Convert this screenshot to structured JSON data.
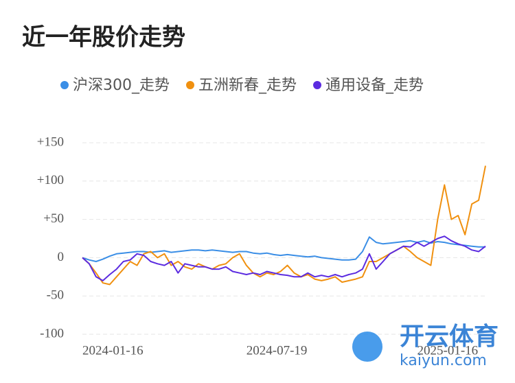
{
  "chart_data": {
    "type": "line",
    "title": "近一年股价走势",
    "categories": [
      "2024-01-16",
      null,
      null,
      null,
      null,
      null,
      null,
      null,
      null,
      null,
      null,
      null,
      null,
      null,
      null,
      null,
      null,
      null,
      null,
      null,
      null,
      null,
      null,
      null,
      "2024-07-19",
      null,
      null,
      null,
      null,
      null,
      null,
      null,
      null,
      null,
      null,
      null,
      null,
      null,
      null,
      null,
      null,
      null,
      null,
      null,
      null,
      null,
      null,
      null,
      null,
      "2025-01-16",
      null,
      null,
      null,
      null,
      null,
      null,
      null,
      null,
      null,
      null
    ],
    "series": [
      {
        "name": "沪深300_走势",
        "color": "#3a8ee6",
        "values": [
          0,
          -3,
          -5,
          -2,
          2,
          5,
          6,
          7,
          8,
          8,
          7,
          8,
          9,
          7,
          8,
          9,
          10,
          10,
          9,
          10,
          9,
          8,
          7,
          8,
          8,
          6,
          5,
          6,
          4,
          3,
          4,
          3,
          2,
          1,
          2,
          0,
          -1,
          -2,
          -3,
          -3,
          -2,
          8,
          27,
          20,
          18,
          19,
          20,
          21,
          22,
          20,
          22,
          19,
          21,
          20,
          18,
          17,
          16,
          15,
          14,
          14
        ]
      },
      {
        "name": "五洲新春_走势",
        "color": "#f0900f",
        "values": [
          0,
          -8,
          -20,
          -33,
          -35,
          -25,
          -15,
          -5,
          -10,
          5,
          8,
          0,
          5,
          -10,
          -5,
          -12,
          -15,
          -8,
          -12,
          -15,
          -10,
          -8,
          0,
          5,
          -10,
          -20,
          -25,
          -20,
          -22,
          -18,
          -10,
          -20,
          -25,
          -22,
          -28,
          -30,
          -28,
          -25,
          -32,
          -30,
          -28,
          -25,
          -5,
          -5,
          0,
          5,
          10,
          15,
          8,
          0,
          -5,
          -10,
          50,
          95,
          50,
          55,
          30,
          70,
          75,
          120
        ]
      },
      {
        "name": "通用设备_走势",
        "color": "#5b2be0",
        "values": [
          0,
          -8,
          -25,
          -30,
          -22,
          -15,
          -5,
          -3,
          5,
          3,
          -5,
          -8,
          -10,
          -5,
          -20,
          -8,
          -10,
          -12,
          -12,
          -15,
          -15,
          -12,
          -18,
          -20,
          -22,
          -20,
          -22,
          -18,
          -20,
          -22,
          -23,
          -25,
          -25,
          -20,
          -25,
          -23,
          -25,
          -22,
          -25,
          -22,
          -20,
          -15,
          5,
          -15,
          -5,
          5,
          10,
          15,
          14,
          20,
          15,
          20,
          25,
          28,
          22,
          18,
          15,
          10,
          8,
          15
        ]
      }
    ],
    "ylim": [
      -100,
      150
    ],
    "yticks": [
      {
        "value": -100,
        "label": "-100"
      },
      {
        "value": -50,
        "label": "-50"
      },
      0,
      {
        "value": 50,
        "label": "+50"
      },
      {
        "value": 100,
        "label": "+100"
      },
      {
        "value": 150,
        "label": "+150"
      }
    ],
    "grid": true
  },
  "watermark": {
    "brand": "开云体育",
    "url": "kaiyun.com"
  }
}
